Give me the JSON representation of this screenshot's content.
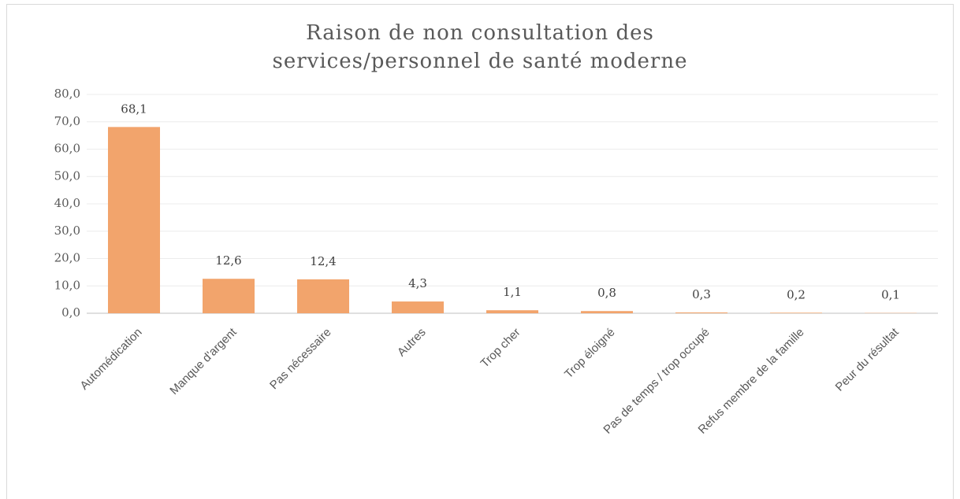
{
  "chart_data": {
    "type": "bar",
    "title": "Raison de non consultation des services/personnel de santé moderne",
    "categories": [
      "Automédication",
      "Manque d'argent",
      "Pas nécessaire",
      "Autres",
      "Trop cher",
      "Trop éloigné",
      "Pas de temps / trop occupé",
      "Refus membre  de la famille",
      "Peur du résultat"
    ],
    "values": [
      68.1,
      12.6,
      12.4,
      4.3,
      1.1,
      0.8,
      0.3,
      0.2,
      0.1
    ],
    "value_labels": [
      "68,1",
      "12,6",
      "12,4",
      "4,3",
      "1,1",
      "0,8",
      "0,3",
      "0,2",
      "0,1"
    ],
    "color": "#f2a46c",
    "ylim": [
      0,
      80
    ],
    "yticks": [
      {
        "value": 0,
        "label": "0,0"
      },
      {
        "value": 10,
        "label": "10,0"
      },
      {
        "value": 20,
        "label": "20,0"
      },
      {
        "value": 30,
        "label": "30,0"
      },
      {
        "value": 40,
        "label": "40,0"
      },
      {
        "value": 50,
        "label": "50,0"
      },
      {
        "value": 60,
        "label": "60,0"
      },
      {
        "value": 70,
        "label": "70,0"
      },
      {
        "value": 80,
        "label": "80,0"
      }
    ],
    "grid": true
  }
}
